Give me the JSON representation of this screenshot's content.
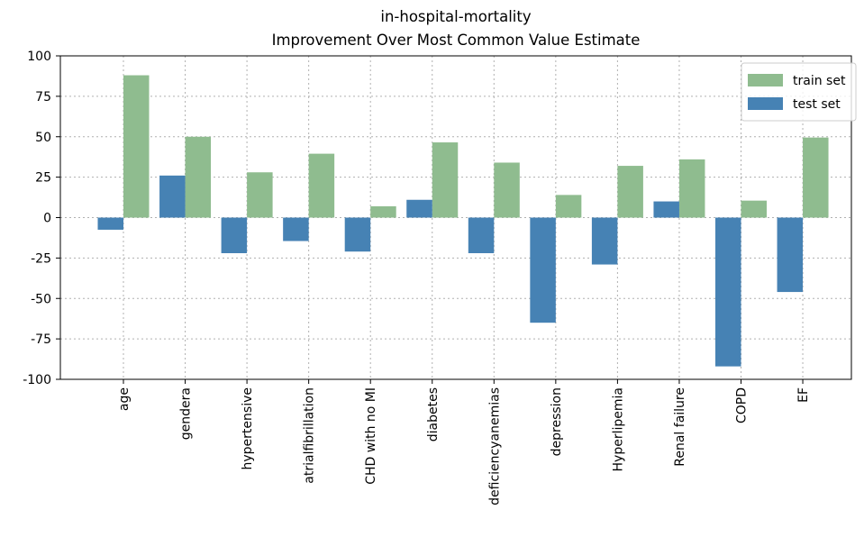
{
  "chart_data": {
    "type": "bar",
    "title": "in-hospital-mortality",
    "subtitle": "Improvement Over Most Common Value Estimate",
    "categories": [
      "age",
      "gendera",
      "hypertensive",
      "atrialfibrillation",
      "CHD with no MI",
      "diabetes",
      "deficiencyanemias",
      "depression",
      "Hyperlipemia",
      "Renal failure",
      "COPD",
      "EF"
    ],
    "series": [
      {
        "name": "train set",
        "color": "#8fbc8f",
        "values": [
          88,
          50,
          28,
          39.5,
          7,
          46.5,
          34,
          14,
          32,
          36,
          10.5,
          49.5
        ]
      },
      {
        "name": "test set",
        "color": "#4682b4",
        "values": [
          -7.5,
          26,
          -22,
          -14.5,
          -21,
          11,
          -22,
          -65,
          -29,
          10,
          -92,
          -46
        ]
      }
    ],
    "ylim": [
      -100,
      100
    ],
    "yticks": [
      -100,
      -75,
      -50,
      -25,
      0,
      25,
      50,
      75,
      100
    ],
    "grid": true,
    "legend": "upper right"
  }
}
